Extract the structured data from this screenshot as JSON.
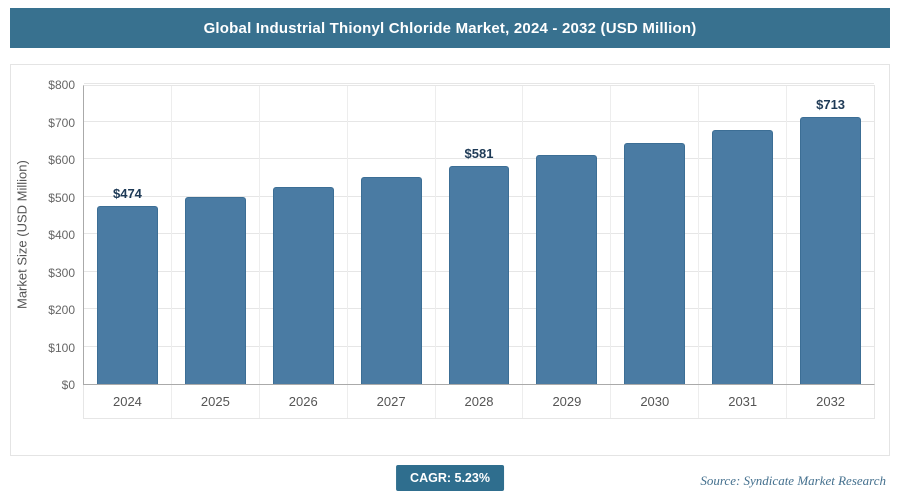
{
  "header": {
    "title": "Global Industrial Thionyl Chloride Market, 2024 - 2032 (USD Million)"
  },
  "chart_data": {
    "type": "bar",
    "title": "Global Industrial Thionyl Chloride Market, 2024 - 2032 (USD Million)",
    "categories": [
      "2024",
      "2025",
      "2026",
      "2027",
      "2028",
      "2029",
      "2030",
      "2031",
      "2032"
    ],
    "values": [
      474,
      499,
      525,
      552,
      581,
      611,
      643,
      677,
      713
    ],
    "labeled_points": {
      "2024": "$474",
      "2028": "$581",
      "2032": "$713"
    },
    "xlabel": "",
    "ylabel": "Market Size (USD Million)",
    "ylim": [
      0,
      800
    ],
    "ytick_step": 100,
    "ytick_labels": [
      "$0",
      "$100",
      "$200",
      "$300",
      "$400",
      "$500",
      "$600",
      "$700",
      "$800"
    ],
    "grid": true,
    "legend": "none",
    "bar_color": "#4a7ba3",
    "bar_border_color": "#3c6e95"
  },
  "footer": {
    "cagr_label": "CAGR: 5.23%",
    "source": "Source: Syndicate Market Research"
  },
  "colors": {
    "accent": "#38718f",
    "badge": "#2f6e8e",
    "value_label_text": "#1e3a56",
    "axis_text": "#666666",
    "gridline": "#e6e6e6"
  }
}
